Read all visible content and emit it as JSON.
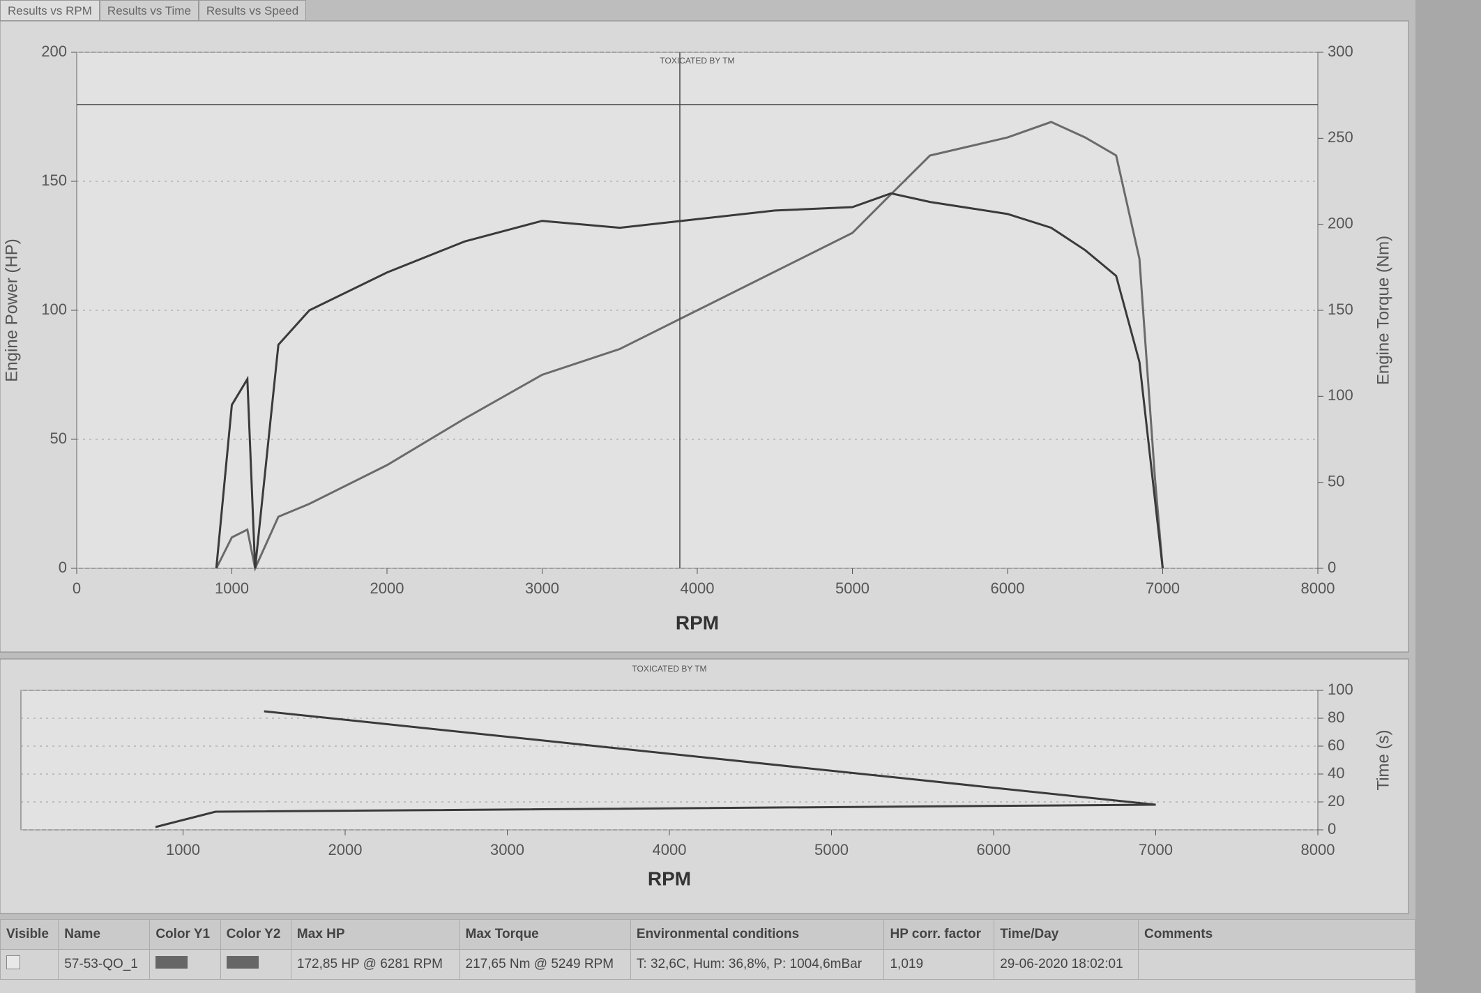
{
  "tabs": [
    "Results vs RPM",
    "Results vs Time",
    "Results vs Speed"
  ],
  "chart_data": [
    {
      "type": "line",
      "annotation": "TOXICATED BY TM",
      "x_label": "RPM",
      "y_label": "Engine Power (HP)",
      "y2_label": "Engine Torque (Nm)",
      "x": [
        900,
        1000,
        1100,
        1150,
        1300,
        1500,
        2000,
        2500,
        3000,
        3500,
        4000,
        4500,
        5000,
        5249,
        5500,
        6000,
        6281,
        6500,
        6700,
        6850,
        6950,
        7000
      ],
      "series": [
        {
          "color": "#6a6a6a",
          "values": [
            0,
            12,
            15,
            0,
            20,
            25,
            40,
            58,
            75,
            85,
            100,
            115,
            130,
            145,
            160,
            167,
            173,
            167,
            160,
            120,
            35,
            0
          ]
        },
        {
          "color": "#3a3a3a",
          "axis": "y2",
          "values": [
            0,
            95,
            110,
            0,
            130,
            150,
            172,
            190,
            202,
            198,
            203,
            208,
            210,
            218,
            213,
            206,
            198,
            185,
            170,
            120,
            40,
            0
          ]
        }
      ],
      "xlim": [
        0,
        8000
      ],
      "xticks": [
        0,
        1000,
        2000,
        3000,
        4000,
        5000,
        6000,
        7000,
        8000
      ],
      "ylim": [
        0,
        200
      ],
      "yticks": [
        0,
        50,
        100,
        150,
        200
      ],
      "y2lim": [
        0,
        300
      ],
      "y2ticks": [
        0,
        50,
        100,
        150,
        200,
        250,
        300
      ],
      "grid": true
    },
    {
      "type": "line",
      "annotation": "TOXICATED BY TM",
      "x_label": "RPM",
      "y2_label": "Time (s)",
      "x": [
        830,
        1100,
        1200,
        7000,
        1500
      ],
      "series": [
        {
          "color": "#3a3a3a",
          "axis": "y2",
          "values": [
            2,
            10,
            13,
            18,
            85
          ]
        }
      ],
      "xlim": [
        0,
        8000
      ],
      "xticks": [
        1000,
        2000,
        3000,
        4000,
        5000,
        6000,
        7000,
        8000
      ],
      "y2lim": [
        0,
        100
      ],
      "y2ticks": [
        0,
        20,
        40,
        60,
        80,
        100
      ],
      "grid": true
    }
  ],
  "table": {
    "headers": [
      "Visible",
      "Name",
      "Color Y1",
      "Color Y2",
      "Max HP",
      "Max Torque",
      "Environmental conditions",
      "HP corr. factor",
      "Time/Day",
      "Comments"
    ],
    "row": {
      "name": "57-53-QO_1",
      "max_hp": "172,85 HP @ 6281 RPM",
      "max_torque": "217,65 Nm @ 5249 RPM",
      "env": "T: 32,6C, Hum: 36,8%, P: 1004,6mBar",
      "corr": "1,019",
      "time": "29-06-2020 18:02:01"
    }
  }
}
